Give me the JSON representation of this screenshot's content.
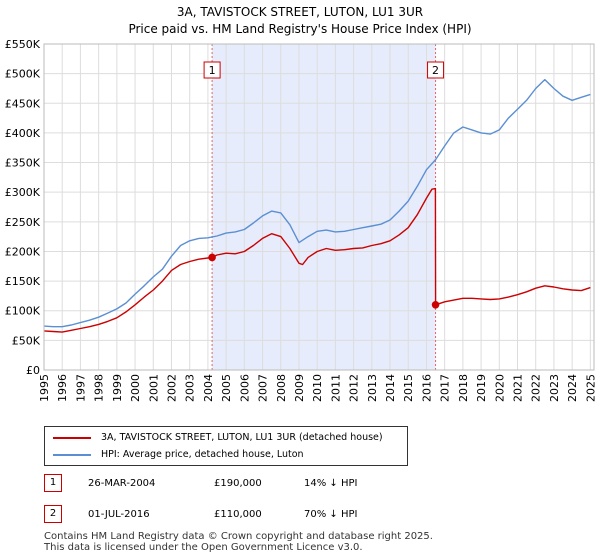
{
  "title_line1": "3A, TAVISTOCK STREET, LUTON, LU1 3UR",
  "title_line2": "Price paid vs. HM Land Registry's House Price Index (HPI)",
  "chart_data": {
    "type": "line",
    "xlim": [
      1995,
      2025.2
    ],
    "ylim": [
      0,
      550000
    ],
    "y_ticks": [
      0,
      50000,
      100000,
      150000,
      200000,
      250000,
      300000,
      350000,
      400000,
      450000,
      500000,
      550000
    ],
    "y_tick_labels": [
      "£0",
      "£50K",
      "£100K",
      "£150K",
      "£200K",
      "£250K",
      "£300K",
      "£350K",
      "£400K",
      "£450K",
      "£500K",
      "£550K"
    ],
    "x_ticks": [
      1995,
      1996,
      1997,
      1998,
      1999,
      2000,
      2001,
      2002,
      2003,
      2004,
      2005,
      2006,
      2007,
      2008,
      2009,
      2010,
      2011,
      2012,
      2013,
      2014,
      2015,
      2016,
      2017,
      2018,
      2019,
      2020,
      2021,
      2022,
      2023,
      2024,
      2025
    ],
    "shaded_region": [
      2004.23,
      2016.5
    ],
    "series": [
      {
        "name": "3A, TAVISTOCK STREET, LUTON, LU1 3UR (detached house)",
        "color": "#cc0000",
        "x": [
          1995.0,
          1995.5,
          1996.0,
          1996.5,
          1997.0,
          1997.5,
          1998.0,
          1998.5,
          1999.0,
          1999.5,
          2000.0,
          2000.5,
          2001.0,
          2001.5,
          2002.0,
          2002.5,
          2003.0,
          2003.5,
          2004.0,
          2004.23,
          2004.5,
          2005.0,
          2005.5,
          2006.0,
          2006.5,
          2007.0,
          2007.5,
          2008.0,
          2008.5,
          2009.0,
          2009.2,
          2009.5,
          2010.0,
          2010.5,
          2011.0,
          2011.5,
          2012.0,
          2012.5,
          2013.0,
          2013.5,
          2014.0,
          2014.5,
          2015.0,
          2015.5,
          2016.0,
          2016.3,
          2016.49,
          2016.5,
          2017.0,
          2017.5,
          2018.0,
          2018.5,
          2019.0,
          2019.5,
          2020.0,
          2020.5,
          2021.0,
          2021.5,
          2022.0,
          2022.5,
          2023.0,
          2023.5,
          2024.0,
          2024.5,
          2025.0
        ],
        "y": [
          66000,
          65000,
          64000,
          67000,
          70000,
          73000,
          77000,
          82000,
          88000,
          98000,
          110000,
          123000,
          135000,
          150000,
          168000,
          178000,
          183000,
          187000,
          189000,
          190000,
          194000,
          197000,
          196000,
          200000,
          210000,
          222000,
          230000,
          225000,
          205000,
          180000,
          178000,
          190000,
          200000,
          205000,
          202000,
          203000,
          205000,
          206000,
          210000,
          213000,
          218000,
          228000,
          240000,
          262000,
          290000,
          305000,
          306000,
          110000,
          115000,
          118000,
          121000,
          121000,
          120000,
          119000,
          120000,
          123000,
          127000,
          132000,
          138000,
          142000,
          140000,
          137000,
          135000,
          134000,
          139000
        ]
      },
      {
        "name": "HPI: Average price, detached house, Luton",
        "color": "#5b8fd4",
        "x": [
          1995.0,
          1995.5,
          1996.0,
          1996.5,
          1997.0,
          1997.5,
          1998.0,
          1998.5,
          1999.0,
          1999.5,
          2000.0,
          2000.5,
          2001.0,
          2001.5,
          2002.0,
          2002.5,
          2003.0,
          2003.5,
          2004.0,
          2004.5,
          2005.0,
          2005.5,
          2006.0,
          2006.5,
          2007.0,
          2007.5,
          2008.0,
          2008.5,
          2009.0,
          2009.5,
          2010.0,
          2010.5,
          2011.0,
          2011.5,
          2012.0,
          2012.5,
          2013.0,
          2013.5,
          2014.0,
          2014.5,
          2015.0,
          2015.5,
          2016.0,
          2016.5,
          2017.0,
          2017.5,
          2018.0,
          2018.5,
          2019.0,
          2019.5,
          2020.0,
          2020.5,
          2021.0,
          2021.5,
          2022.0,
          2022.5,
          2023.0,
          2023.5,
          2024.0,
          2024.5,
          2025.0
        ],
        "y": [
          74000,
          73000,
          73000,
          76000,
          80000,
          84000,
          89000,
          96000,
          103000,
          113000,
          128000,
          142000,
          157000,
          170000,
          192000,
          210000,
          218000,
          222000,
          223000,
          226000,
          231000,
          233000,
          237000,
          248000,
          260000,
          268000,
          265000,
          245000,
          215000,
          225000,
          234000,
          236000,
          233000,
          234000,
          237000,
          240000,
          243000,
          246000,
          253000,
          268000,
          285000,
          310000,
          338000,
          355000,
          378000,
          400000,
          410000,
          405000,
          400000,
          398000,
          405000,
          425000,
          440000,
          455000,
          475000,
          490000,
          475000,
          462000,
          455000,
          460000,
          465000
        ]
      }
    ],
    "markers": [
      {
        "label": "1",
        "x": 2004.23,
        "y": 190000
      },
      {
        "label": "2",
        "x": 2016.5,
        "y": 110000
      }
    ]
  },
  "legend": {
    "property_label": "3A, TAVISTOCK STREET, LUTON, LU1 3UR (detached house)",
    "hpi_label": "HPI: Average price, detached house, Luton"
  },
  "transactions": [
    {
      "num": "1",
      "date": "26-MAR-2004",
      "price": "£190,000",
      "hpi": "14% ↓ HPI"
    },
    {
      "num": "2",
      "date": "01-JUL-2016",
      "price": "£110,000",
      "hpi": "70% ↓ HPI"
    }
  ],
  "footer_line1": "Contains HM Land Registry data © Crown copyright and database right 2025.",
  "footer_line2": "This data is licensed under the Open Government Licence v3.0."
}
